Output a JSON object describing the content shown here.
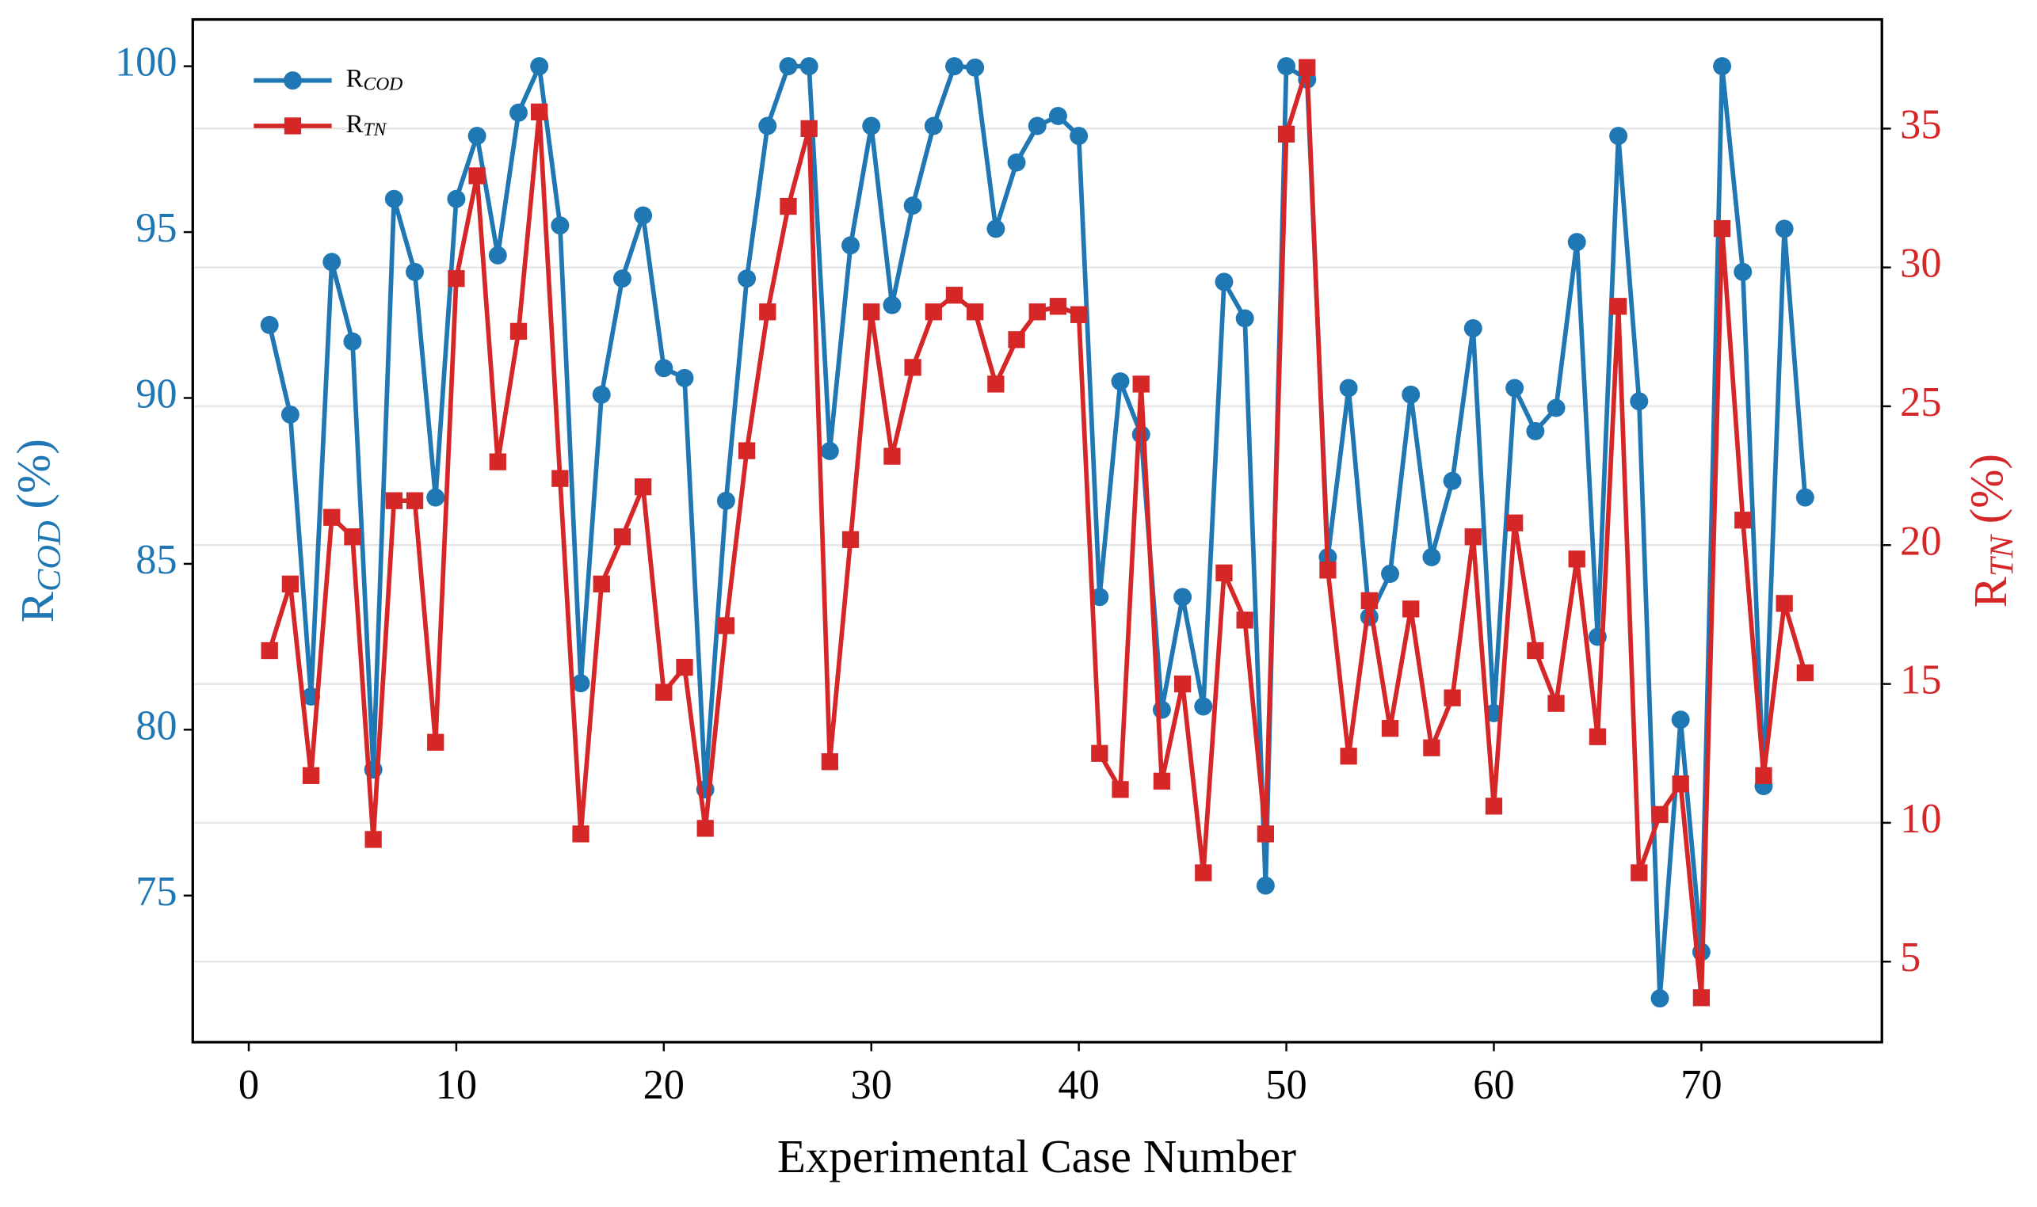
{
  "chart_data": {
    "type": "line",
    "xlabel": "Experimental Case Number",
    "ylabel": "RCOD (%)",
    "y2label": "RTN (%)",
    "x": [
      1,
      2,
      3,
      4,
      5,
      6,
      7,
      8,
      9,
      10,
      11,
      12,
      13,
      14,
      15,
      16,
      17,
      18,
      19,
      20,
      21,
      22,
      23,
      24,
      25,
      26,
      27,
      28,
      29,
      30,
      31,
      32,
      33,
      34,
      35,
      36,
      37,
      38,
      39,
      40,
      41,
      42,
      43,
      44,
      45,
      46,
      47,
      48,
      49,
      50,
      51,
      52,
      53,
      54,
      55,
      56,
      57,
      58,
      59,
      60,
      61,
      62,
      63,
      64,
      65,
      66,
      67,
      68,
      69,
      70,
      71,
      72,
      73,
      74,
      75
    ],
    "series": [
      {
        "name": "RCOD",
        "color": "#1f77b4",
        "marker": "circle",
        "axis": "y",
        "values": [
          92.2,
          89.5,
          81.0,
          94.1,
          91.7,
          78.8,
          96.0,
          93.8,
          87.0,
          96.0,
          97.9,
          94.3,
          98.6,
          100,
          95.2,
          81.4,
          90.1,
          93.6,
          95.5,
          90.9,
          90.6,
          78.2,
          86.9,
          93.6,
          98.2,
          100,
          100,
          88.4,
          94.6,
          98.2,
          92.8,
          95.8,
          98.2,
          100,
          99.96,
          95.1,
          97.1,
          98.2,
          98.5,
          97.9,
          84.0,
          90.5,
          88.9,
          80.6,
          84.0,
          80.7,
          93.5,
          92.4,
          75.3,
          100,
          99.6,
          85.2,
          90.3,
          83.4,
          84.7,
          90.1,
          85.2,
          87.5,
          92.1,
          80.5,
          90.3,
          89.0,
          89.7,
          94.7,
          82.8,
          97.9,
          89.9,
          71.9,
          80.3,
          73.3,
          100,
          93.8,
          78.3,
          95.1,
          87.0
        ]
      },
      {
        "name": "RTN",
        "color": "#d62728",
        "marker": "square",
        "axis": "y2",
        "values": [
          16.2,
          18.6,
          11.7,
          21.0,
          20.3,
          9.4,
          21.6,
          21.6,
          12.9,
          29.6,
          33.3,
          23.0,
          27.7,
          35.6,
          22.4,
          9.6,
          18.6,
          20.3,
          22.1,
          14.7,
          15.6,
          9.8,
          17.1,
          23.4,
          28.4,
          32.2,
          35.0,
          12.2,
          20.2,
          28.4,
          23.2,
          26.4,
          28.4,
          29.0,
          28.4,
          25.8,
          27.4,
          28.4,
          28.6,
          28.3,
          12.5,
          11.2,
          25.8,
          11.5,
          15.0,
          8.2,
          19.0,
          17.3,
          9.6,
          34.8,
          37.2,
          19.1,
          12.4,
          18.0,
          13.4,
          17.7,
          12.7,
          14.5,
          20.3,
          10.6,
          20.8,
          16.2,
          14.3,
          19.5,
          13.1,
          28.6,
          8.2,
          10.3,
          11.4,
          3.7,
          31.4,
          20.9,
          11.7,
          17.9,
          15.4
        ]
      }
    ],
    "xlim": [
      -2.7,
      78.7
    ],
    "xticks": [
      0,
      10,
      20,
      30,
      40,
      50,
      60,
      70
    ],
    "ylim": [
      70.58,
      101.41
    ],
    "yticks": [
      75,
      80,
      85,
      90,
      95,
      100
    ],
    "y2lim": [
      2.1,
      38.93
    ],
    "y2ticks": [
      5,
      10,
      15,
      20,
      25,
      30,
      35
    ],
    "grid": "y2",
    "legend": "upper left"
  }
}
